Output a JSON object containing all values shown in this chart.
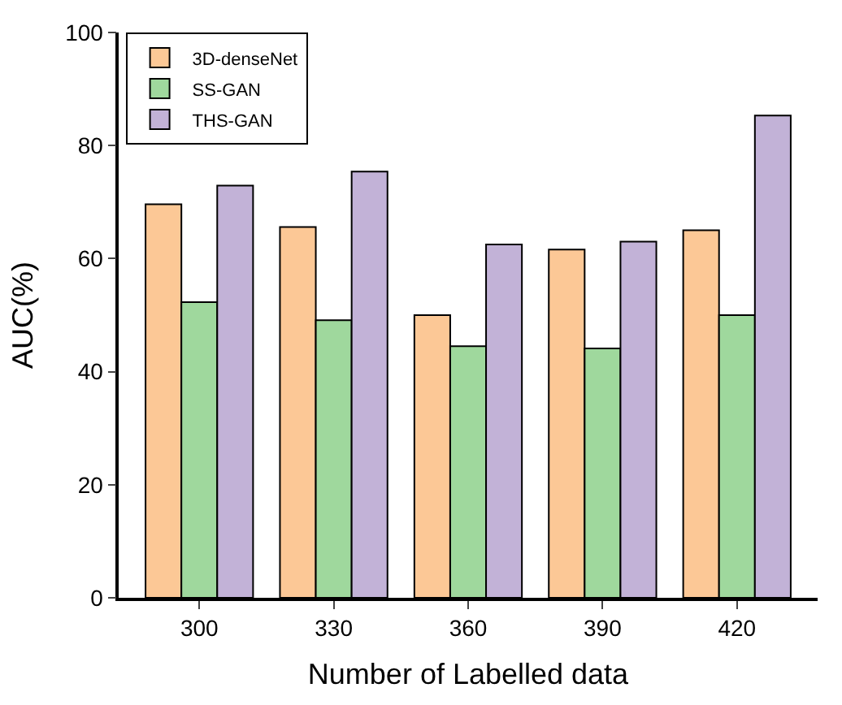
{
  "chart_data": {
    "type": "bar",
    "xlabel": "Number of Labelled data",
    "ylabel": "AUC(%)",
    "categories": [
      "300",
      "330",
      "360",
      "390",
      "420"
    ],
    "series": [
      {
        "name": "3D-denseNet",
        "color": "#fcc896",
        "values": [
          69.6,
          65.6,
          50.0,
          61.6,
          65.0
        ]
      },
      {
        "name": "SS-GAN",
        "color": "#9fd89d",
        "values": [
          52.3,
          49.1,
          44.5,
          44.1,
          50.0
        ]
      },
      {
        "name": "THS-GAN",
        "color": "#c2b2d7",
        "values": [
          72.9,
          75.4,
          62.5,
          63.0,
          85.3
        ]
      }
    ],
    "ylim": [
      0,
      100
    ],
    "yticks": [
      0,
      20,
      40,
      60,
      80,
      100
    ],
    "grid": false,
    "legend": "top left"
  }
}
